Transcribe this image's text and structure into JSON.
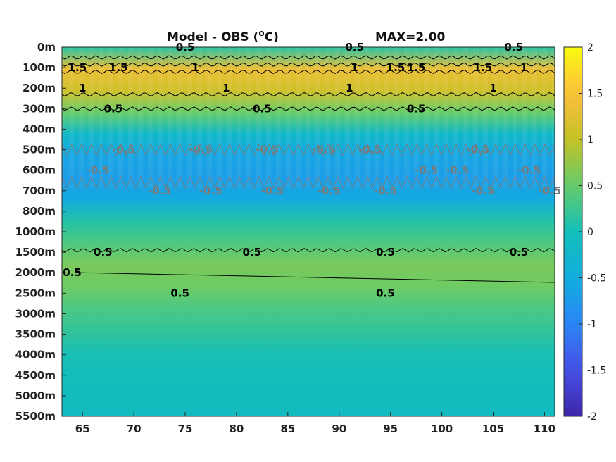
{
  "chart_data": {
    "type": "heatmap",
    "title": "Model - OBS (",
    "title_sup": "o",
    "title_unit": "C)",
    "max_label": "MAX=2.00",
    "x_ticks": [
      65,
      70,
      75,
      80,
      85,
      90,
      95,
      100,
      105,
      110
    ],
    "xlim": [
      63,
      111
    ],
    "y_ticks": [
      "0m",
      "100m",
      "200m",
      "300m",
      "400m",
      "500m",
      "600m",
      "700m",
      "800m",
      "1000m",
      "1500m",
      "2000m",
      "2500m",
      "3000m",
      "3500m",
      "4000m",
      "4500m",
      "5000m",
      "5500m"
    ],
    "colorbar": {
      "ticks": [
        "2",
        "1.5",
        "1",
        "0.5",
        "0",
        "-0.5",
        "-1",
        "-1.5",
        "-2"
      ],
      "range": [
        -2,
        2
      ],
      "colormap": "parula"
    },
    "depth_profile": [
      0.15,
      1.35,
      1.1,
      0.5,
      -0.2,
      -0.6,
      -0.7,
      -0.55,
      0.1,
      0.35,
      0.6,
      0.55,
      0.35,
      0.2,
      0.05,
      0.0,
      -0.05,
      -0.1
    ],
    "contour_labels": [
      {
        "text": "0.5",
        "x": 75,
        "depth": "0m",
        "color": "#000000"
      },
      {
        "text": "1",
        "x": 76,
        "depth": "100m",
        "color": "#000000"
      },
      {
        "text": "1.5",
        "x": 64.5,
        "depth": "100m",
        "color": "#000000"
      },
      {
        "text": "1.5",
        "x": 68.5,
        "depth": "100m",
        "color": "#000000"
      },
      {
        "text": "1",
        "x": 65,
        "depth": "200m",
        "color": "#000000"
      },
      {
        "text": "0.5",
        "x": 68,
        "depth": "300m",
        "color": "#000000"
      },
      {
        "text": "1",
        "x": 79,
        "depth": "200m",
        "color": "#000000"
      },
      {
        "text": "0.5",
        "x": 82.5,
        "depth": "300m",
        "color": "#000000"
      },
      {
        "text": "0.5",
        "x": 91.5,
        "depth": "0m",
        "color": "#000000"
      },
      {
        "text": "1",
        "x": 91.5,
        "depth": "100m",
        "color": "#000000"
      },
      {
        "text": "1",
        "x": 91,
        "depth": "200m",
        "color": "#000000"
      },
      {
        "text": "1.5",
        "x": 95.5,
        "depth": "100m",
        "color": "#000000"
      },
      {
        "text": "1.5",
        "x": 97.5,
        "depth": "100m",
        "color": "#000000"
      },
      {
        "text": "0.5",
        "x": 97.5,
        "depth": "300m",
        "color": "#000000"
      },
      {
        "text": "1.5",
        "x": 104,
        "depth": "100m",
        "color": "#000000"
      },
      {
        "text": "1",
        "x": 105,
        "depth": "200m",
        "color": "#000000"
      },
      {
        "text": "0.5",
        "x": 107,
        "depth": "0m",
        "color": "#000000"
      },
      {
        "text": "1",
        "x": 108,
        "depth": "100m",
        "color": "#000000"
      },
      {
        "text": "0.5",
        "x": 67,
        "depth": "1500m",
        "color": "#000000"
      },
      {
        "text": "0.5",
        "x": 64,
        "depth": "2000m",
        "color": "#000000"
      },
      {
        "text": "0.5",
        "x": 81.5,
        "depth": "1500m",
        "color": "#000000"
      },
      {
        "text": "0.5",
        "x": 94.5,
        "depth": "1500m",
        "color": "#000000"
      },
      {
        "text": "0.5",
        "x": 107.5,
        "depth": "1500m",
        "color": "#000000"
      },
      {
        "text": "0.5",
        "x": 74.5,
        "depth": "2500m",
        "color": "#000000"
      },
      {
        "text": "0.5",
        "x": 94.5,
        "depth": "2500m",
        "color": "#000000"
      },
      {
        "text": "-0.5",
        "x": 69,
        "depth": "500m",
        "color": "#7a7a7a"
      },
      {
        "text": "-0.5",
        "x": 66.5,
        "depth": "600m",
        "color": "#7a7a7a"
      },
      {
        "text": "-0.5",
        "x": 72.5,
        "depth": "700m",
        "color": "#7a7a7a"
      },
      {
        "text": "-0.5",
        "x": 76.5,
        "depth": "500m",
        "color": "#7a7a7a"
      },
      {
        "text": "-0.5",
        "x": 77.5,
        "depth": "700m",
        "color": "#7a7a7a"
      },
      {
        "text": "-0.5",
        "x": 83,
        "depth": "500m",
        "color": "#7a7a7a"
      },
      {
        "text": "-0.5",
        "x": 83.5,
        "depth": "700m",
        "color": "#7a7a7a"
      },
      {
        "text": "-0.5",
        "x": 88.5,
        "depth": "500m",
        "color": "#7a7a7a"
      },
      {
        "text": "-0.5",
        "x": 89,
        "depth": "700m",
        "color": "#7a7a7a"
      },
      {
        "text": "-0.5",
        "x": 93,
        "depth": "500m",
        "color": "#7a7a7a"
      },
      {
        "text": "-0.5",
        "x": 94.5,
        "depth": "700m",
        "color": "#7a7a7a"
      },
      {
        "text": "-0.5",
        "x": 98.5,
        "depth": "600m",
        "color": "#7a7a7a"
      },
      {
        "text": "-0.5",
        "x": 101.5,
        "depth": "600m",
        "color": "#7a7a7a"
      },
      {
        "text": "-0.5",
        "x": 103.5,
        "depth": "500m",
        "color": "#7a7a7a"
      },
      {
        "text": "-0.5",
        "x": 104,
        "depth": "700m",
        "color": "#7a7a7a"
      },
      {
        "text": "-0.5",
        "x": 108.5,
        "depth": "600m",
        "color": "#7a7a7a"
      },
      {
        "text": "-0.5",
        "x": 110.5,
        "depth": "700m",
        "color": "#7a7a7a"
      }
    ],
    "contour_lines": [
      {
        "level": "0.5",
        "depth_index": 0.5,
        "style": "wavy",
        "color": "#000000"
      },
      {
        "level": "1",
        "depth_index": 0.85,
        "style": "wavy",
        "color": "#000000"
      },
      {
        "level": "1.5",
        "depth_index": 1.2,
        "style": "wavy",
        "color": "#000000"
      },
      {
        "level": "1",
        "depth_index": 2.3,
        "style": "wavy",
        "color": "#000000"
      },
      {
        "level": "0.5",
        "depth_index": 3.0,
        "style": "wavy",
        "color": "#000000"
      },
      {
        "level": "-0.5",
        "depth_index": 5.0,
        "style": "zigzag",
        "color": "#7a7a7a"
      },
      {
        "level": "-0.5",
        "depth_index": 6.6,
        "style": "zigzag",
        "color": "#7a7a7a"
      },
      {
        "level": "0.5",
        "depth_index": 9.9,
        "style": "wavy",
        "color": "#000000"
      },
      {
        "level": "0.5",
        "depth_index": 11.2,
        "style": "straight",
        "color": "#000000"
      }
    ]
  }
}
